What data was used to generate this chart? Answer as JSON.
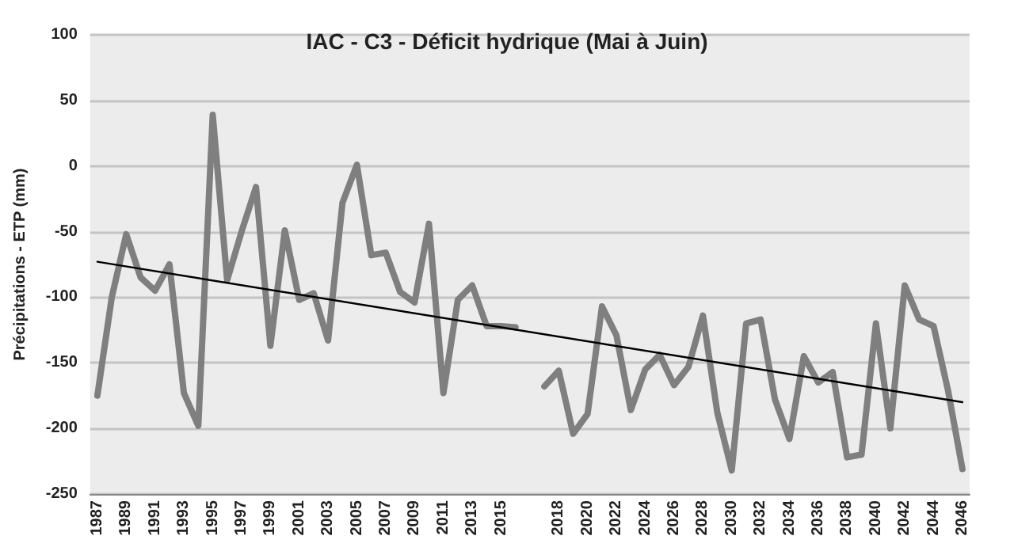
{
  "chart_data": {
    "type": "line",
    "title": "IAC - C3 - Déficit hydrique (Mai à Juin)",
    "ylabel": "Précipitations - ETP (mm)",
    "categories": [
      "1987",
      null,
      "1989",
      null,
      "1991",
      null,
      "1993",
      null,
      "1995",
      null,
      "1997",
      null,
      "1999",
      null,
      "2001",
      null,
      "2003",
      null,
      "2005",
      null,
      "2007",
      null,
      "2009",
      null,
      "2011",
      null,
      "2013",
      null,
      "2015",
      null,
      null,
      null,
      "2018",
      null,
      "2020",
      null,
      "2022",
      null,
      "2024",
      null,
      "2026",
      null,
      "2028",
      null,
      "2030",
      null,
      "2032",
      null,
      "2034",
      null,
      "2036",
      null,
      "2038",
      null,
      "2040",
      null,
      "2042",
      null,
      "2044",
      null,
      "2046"
    ],
    "series": [
      {
        "color": "#7f7f7f",
        "values": [
          -175,
          -100,
          -52,
          -85,
          -95,
          -75,
          -173,
          -198,
          39,
          -87,
          -50,
          -16,
          -137,
          -49,
          -102,
          -97,
          -133,
          -28,
          1,
          -68,
          -66,
          -96,
          -104,
          -44,
          -173,
          -102,
          -91,
          -122,
          -122,
          -123,
          null,
          -168,
          -156,
          -204,
          -189,
          -107,
          -129,
          -186,
          -155,
          -144,
          -167,
          -153,
          -114,
          -188,
          -232,
          -120,
          -117,
          -178,
          -208,
          -145,
          -165,
          -157,
          -222,
          -220,
          -120,
          -200,
          -91,
          -117,
          -122,
          -171,
          -231
        ]
      },
      {
        "color": "#000000",
        "values": [
          -73,
          null,
          null,
          null,
          null,
          null,
          null,
          null,
          null,
          null,
          null,
          null,
          null,
          null,
          null,
          null,
          null,
          null,
          null,
          null,
          null,
          null,
          null,
          null,
          null,
          null,
          null,
          null,
          null,
          null,
          null,
          null,
          null,
          null,
          null,
          null,
          null,
          null,
          null,
          null,
          null,
          null,
          null,
          null,
          null,
          null,
          null,
          null,
          null,
          null,
          null,
          null,
          null,
          null,
          null,
          null,
          null,
          null,
          null,
          null,
          -180
        ]
      }
    ],
    "ylim": [
      -250,
      100
    ],
    "yticks": [
      -250,
      -200,
      -150,
      -100,
      -50,
      0,
      50,
      100
    ],
    "grid": "y",
    "marker": "none",
    "line_style": "solid"
  }
}
